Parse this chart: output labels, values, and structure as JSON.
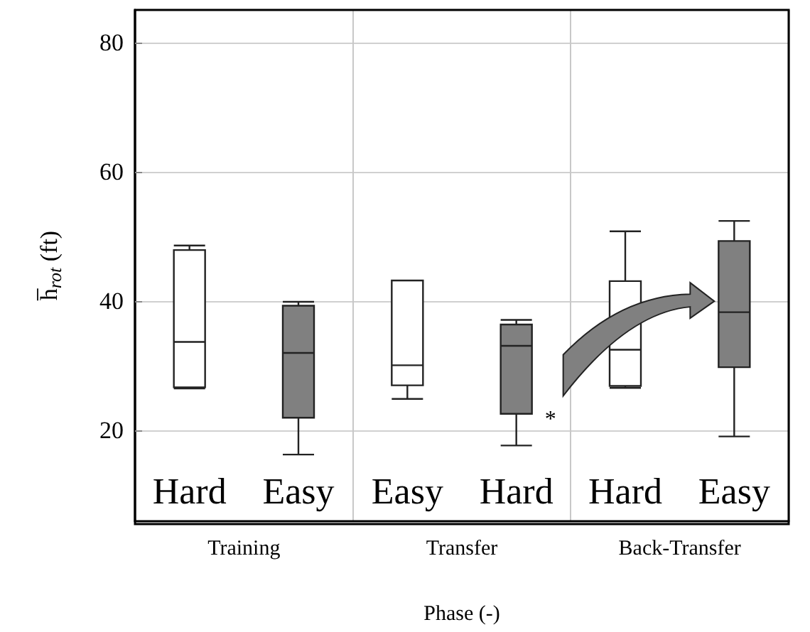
{
  "chart_data": {
    "type": "box",
    "xlabel": "Phase (-)",
    "ylabel": "h̅$_{rot}$ (ft)",
    "categories": [
      "Hard",
      "Easy",
      "Easy",
      "Hard",
      "Hard",
      "Easy"
    ],
    "boxes": [
      {
        "low": 26.5,
        "q1": 26.7,
        "median": 33.7,
        "q3": 47.9,
        "high": 48.6
      },
      {
        "low": 16.3,
        "q1": 22.0,
        "median": 32.0,
        "q3": 39.3,
        "high": 39.9
      },
      {
        "low": 24.9,
        "q1": 27.0,
        "median": 30.1,
        "q3": 43.2,
        "high": 43.2
      },
      {
        "low": 17.7,
        "q1": 22.6,
        "median": 33.1,
        "q3": 36.4,
        "high": 37.1
      },
      {
        "low": 26.6,
        "q1": 26.9,
        "median": 32.5,
        "q3": 43.1,
        "high": 50.8
      },
      {
        "low": 19.1,
        "q1": 29.8,
        "median": 38.3,
        "q3": 49.3,
        "high": 52.4
      }
    ],
    "colors": [
      "#ffffff",
      "#808080",
      "#ffffff",
      "#808080",
      "#ffffff",
      "#808080"
    ],
    "ylim": [
      6,
      85
    ],
    "yticks": [
      20,
      40,
      60,
      80
    ],
    "grid": true,
    "annotations": [
      "Training",
      "Transfer",
      "Back-Transfer",
      "*"
    ]
  }
}
